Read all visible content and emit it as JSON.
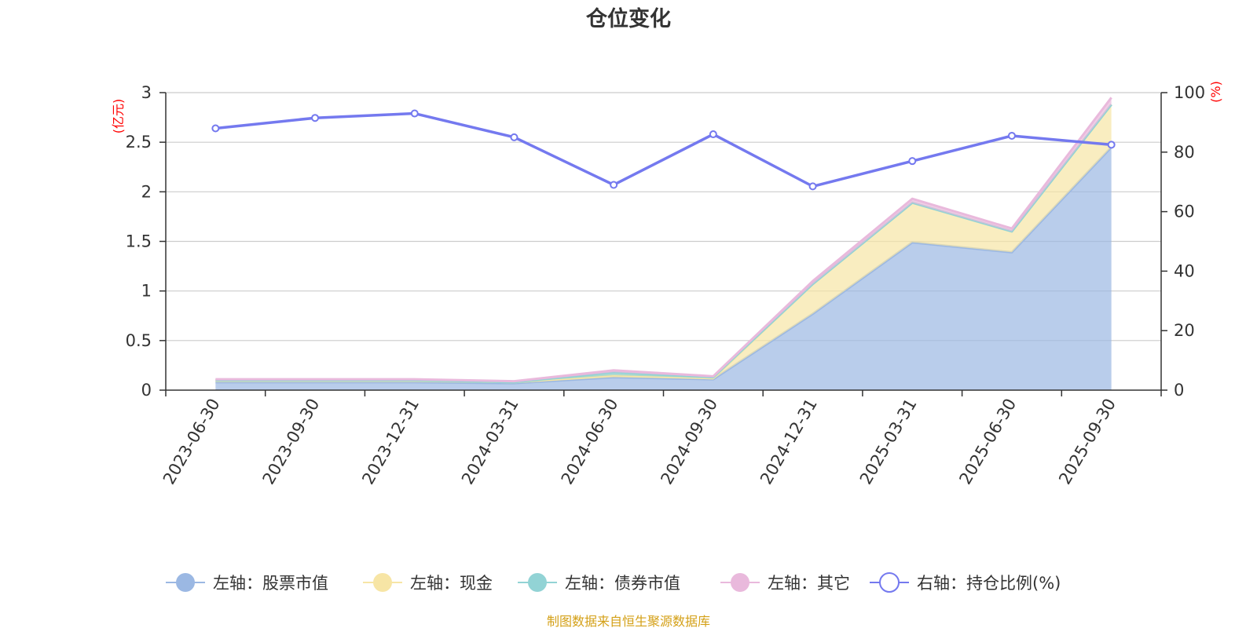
{
  "chart_data": {
    "type": "area",
    "title": "仓位变化",
    "categories": [
      "2023-06-30",
      "2023-09-30",
      "2023-12-31",
      "2024-03-31",
      "2024-06-30",
      "2024-09-30",
      "2024-12-31",
      "2025-03-31",
      "2025-06-30",
      "2025-09-30"
    ],
    "left_axis": {
      "unit": "(亿元)",
      "ylim": [
        0,
        3
      ],
      "ticks": [
        "0",
        "0.5",
        "1",
        "1.5",
        "2",
        "2.5",
        "3"
      ]
    },
    "right_axis": {
      "unit": "(%)",
      "ylim": [
        0,
        100
      ],
      "ticks": [
        "0",
        "20",
        "40",
        "60",
        "80",
        "100"
      ]
    },
    "grid": true,
    "stacked": true,
    "series": [
      {
        "name": "左轴：股票市值",
        "axis": "left",
        "type": "area",
        "color": "#9bb8e3",
        "values": [
          0.08,
          0.08,
          0.08,
          0.07,
          0.13,
          0.11,
          0.77,
          1.49,
          1.39,
          2.45
        ]
      },
      {
        "name": "左轴：现金",
        "axis": "left",
        "type": "area",
        "color": "#f7e5a5",
        "values": [
          0.02,
          0.02,
          0.02,
          0.01,
          0.02,
          0.01,
          0.3,
          0.4,
          0.21,
          0.43
        ]
      },
      {
        "name": "左轴：债券市值",
        "axis": "left",
        "type": "area",
        "color": "#92d3d5",
        "values": [
          0,
          0,
          0,
          0,
          0.03,
          0.01,
          0,
          0,
          0,
          0
        ]
      },
      {
        "name": "左轴：其它",
        "axis": "left",
        "type": "area",
        "color": "#e9b9dc",
        "values": [
          0.01,
          0.01,
          0.01,
          0.01,
          0.02,
          0.01,
          0.03,
          0.04,
          0.03,
          0.07
        ]
      },
      {
        "name": "右轴：持仓比例(%)",
        "axis": "right",
        "type": "line",
        "color": "#7479ef",
        "values": [
          88,
          91.5,
          93,
          85,
          69,
          86,
          68.5,
          77,
          85.5,
          82.5
        ]
      }
    ],
    "legend_position": "bottom",
    "source": "制图数据来自恒生聚源数据库"
  }
}
